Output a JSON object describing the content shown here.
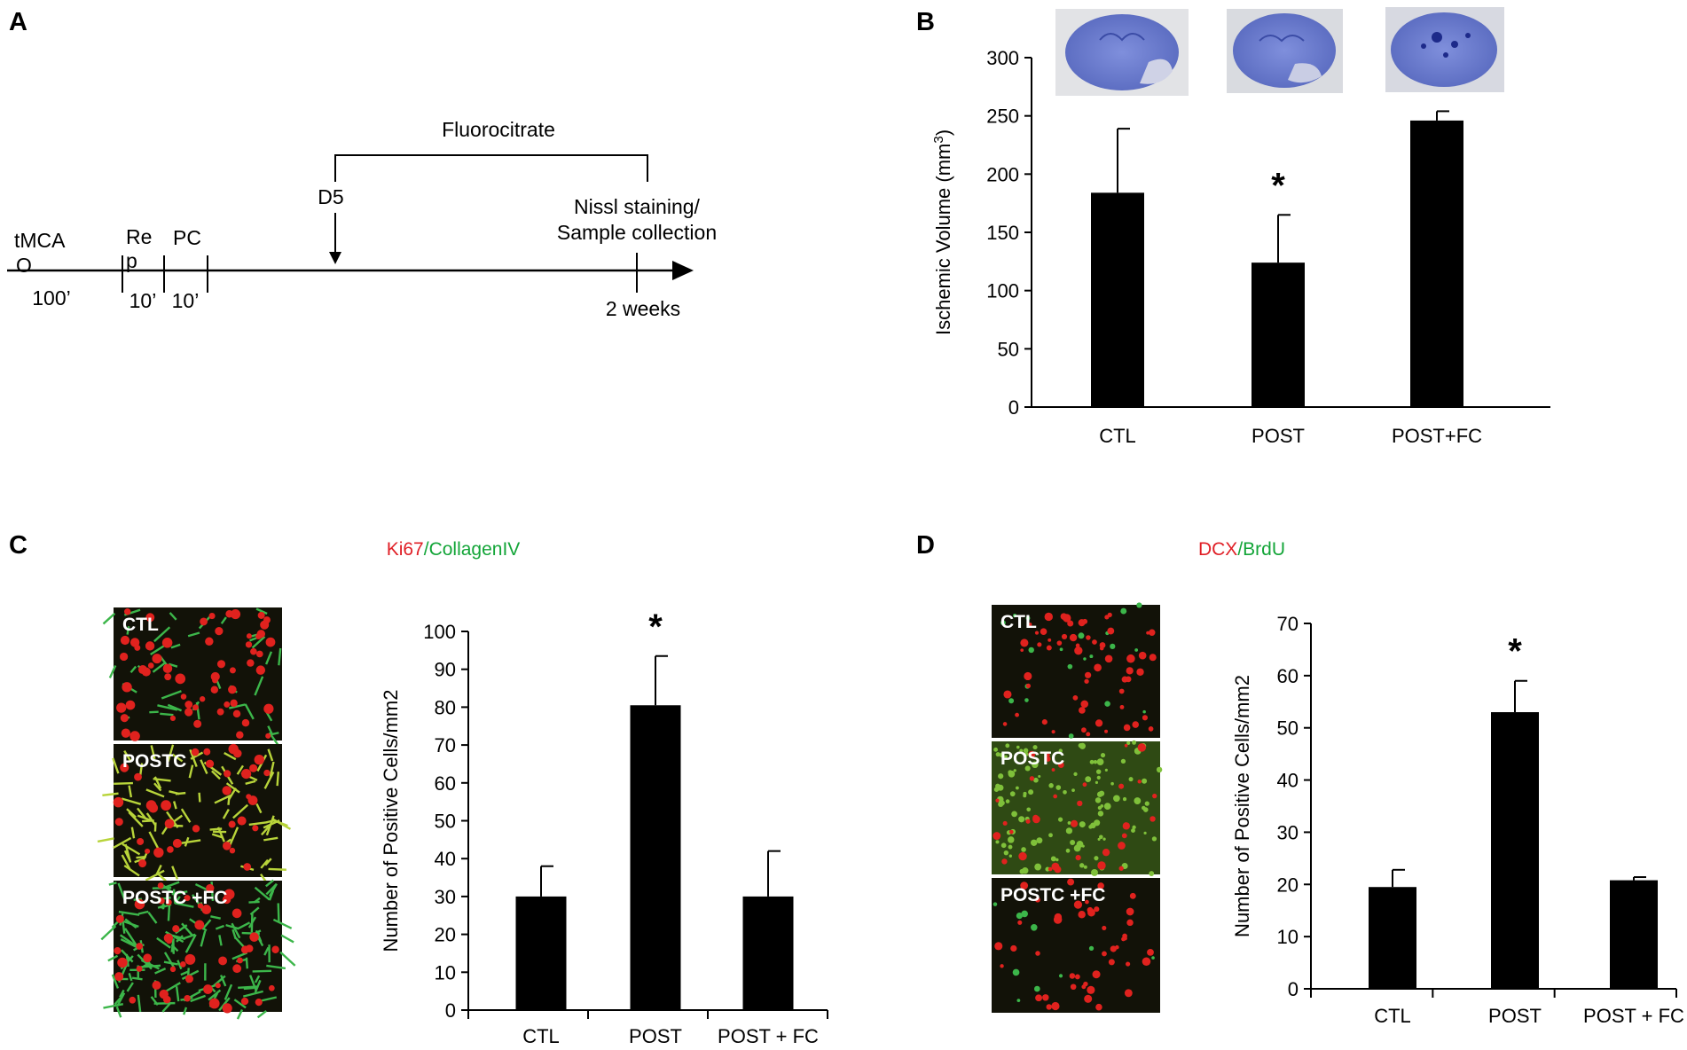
{
  "panels": {
    "A": {
      "letter": "A",
      "treatment": "Fluorocitrate",
      "start_label": "D5",
      "end_label_1": "Nissl staining/",
      "end_label_2": "Sample collection",
      "end_time": "2 weeks",
      "stage_tmca_1": "tMCA",
      "stage_tmca_2": "O",
      "stage_rep_1": "Re",
      "stage_rep_2": "p",
      "stage_pc": "PC",
      "dur_1": "100’",
      "dur_2": "10’",
      "dur_3": "10’"
    },
    "B": {
      "letter": "B"
    },
    "C": {
      "letter": "C",
      "stain_red": "Ki67",
      "stain_sep": "/",
      "stain_green": "CollagenIV",
      "micro_labels": [
        "CTL",
        "POSTC",
        "POSTC +FC"
      ]
    },
    "D": {
      "letter": "D",
      "stain_red": "DCX",
      "stain_sep": "/",
      "stain_green": "BrdU",
      "micro_labels": [
        "CTL",
        "POSTC",
        "POSTC +FC"
      ]
    }
  },
  "colors": {
    "bar": "#000000",
    "red_stain": "#e01f26",
    "green_stain": "#13a538",
    "nissl": "#6f7fd0"
  },
  "chart_data": [
    {
      "id": "B",
      "type": "bar",
      "categories": [
        "CTL",
        "POST",
        "POST+FC"
      ],
      "values": [
        184,
        124,
        246
      ],
      "errors": [
        55,
        41,
        8
      ],
      "ylabel_main": "Ischemic Volume (mm",
      "ylabel_sup": "3",
      "ylabel_end": ")",
      "ylim": [
        0,
        300
      ],
      "yticks": [
        0,
        50,
        100,
        150,
        200,
        250,
        300
      ],
      "significance": [
        "",
        "*",
        ""
      ]
    },
    {
      "id": "C",
      "type": "bar",
      "categories": [
        "CTL",
        "POST",
        "POST + FC"
      ],
      "values": [
        30,
        80.5,
        30
      ],
      "errors": [
        8,
        13,
        12
      ],
      "ylabel": "Number of Positive Cells/mm2",
      "ylim": [
        0,
        100
      ],
      "yticks": [
        0,
        10,
        20,
        30,
        40,
        50,
        60,
        70,
        80,
        90,
        100
      ],
      "significance": [
        "",
        "*",
        ""
      ]
    },
    {
      "id": "D",
      "type": "bar",
      "categories": [
        "CTL",
        "POST",
        "POST + FC"
      ],
      "values": [
        19.5,
        53,
        20.8
      ],
      "errors": [
        3.3,
        6,
        0.6
      ],
      "ylabel": "Number of Positive Cells/mm2",
      "ylim": [
        0,
        70
      ],
      "yticks": [
        0,
        10,
        20,
        30,
        40,
        50,
        60,
        70
      ],
      "significance": [
        "",
        "*",
        ""
      ]
    }
  ]
}
